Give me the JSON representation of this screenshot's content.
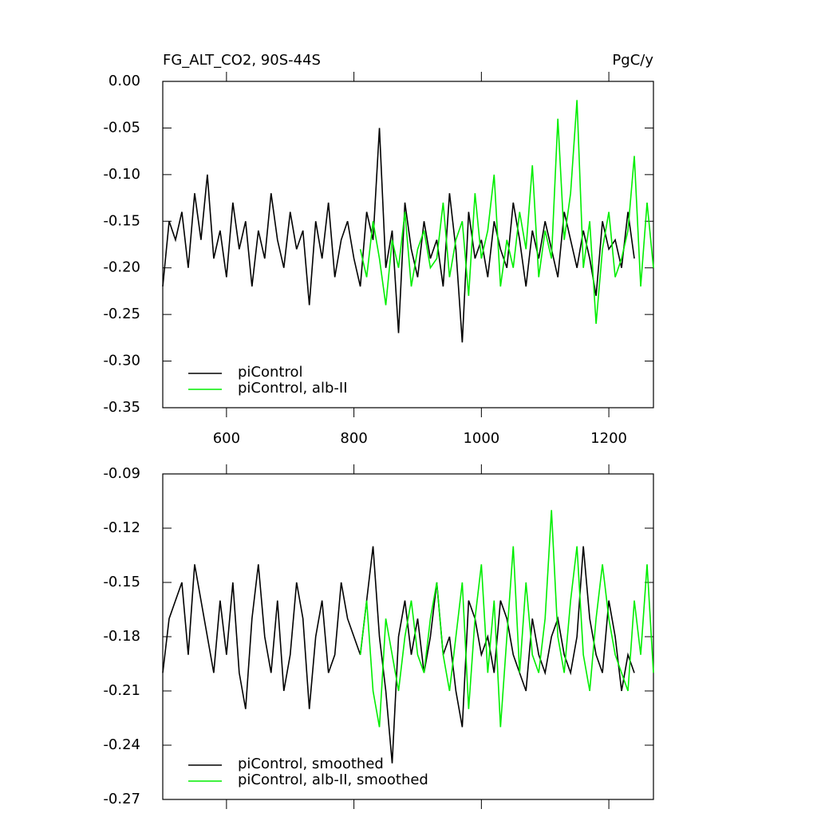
{
  "chart_data": [
    {
      "type": "line",
      "title": "FG_ALT_CO2, 90S-44S",
      "units": "PgC/y",
      "x": [
        500,
        510,
        520,
        530,
        540,
        550,
        560,
        570,
        580,
        590,
        600,
        610,
        620,
        630,
        640,
        650,
        660,
        670,
        680,
        690,
        700,
        710,
        720,
        730,
        740,
        750,
        760,
        770,
        780,
        790,
        800,
        810,
        820,
        830,
        840,
        850,
        860,
        870,
        880,
        890,
        900,
        910,
        920,
        930,
        940,
        950,
        960,
        970,
        980,
        990,
        1000,
        1010,
        1020,
        1030,
        1040,
        1050,
        1060,
        1070,
        1080,
        1090,
        1100,
        1110,
        1120,
        1130,
        1140,
        1150,
        1160,
        1170,
        1180,
        1190,
        1200,
        1210,
        1220,
        1230,
        1240,
        1250,
        1260,
        1270
      ],
      "series": [
        {
          "name": "piControl",
          "color": "#000000",
          "values": [
            -0.22,
            -0.15,
            -0.17,
            -0.14,
            -0.2,
            -0.12,
            -0.17,
            -0.1,
            -0.19,
            -0.16,
            -0.21,
            -0.13,
            -0.18,
            -0.15,
            -0.22,
            -0.16,
            -0.19,
            -0.12,
            -0.17,
            -0.2,
            -0.14,
            -0.18,
            -0.16,
            -0.24,
            -0.15,
            -0.19,
            -0.13,
            -0.21,
            -0.17,
            -0.15,
            -0.19,
            -0.22,
            -0.14,
            -0.17,
            -0.05,
            -0.2,
            -0.16,
            -0.27,
            -0.13,
            -0.18,
            -0.21,
            -0.15,
            -0.19,
            -0.17,
            -0.22,
            -0.12,
            -0.18,
            -0.28,
            -0.14,
            -0.19,
            -0.17,
            -0.21,
            -0.15,
            -0.18,
            -0.2,
            -0.13,
            -0.17,
            -0.22,
            -0.16,
            -0.19,
            -0.15,
            -0.18,
            -0.21,
            -0.14,
            -0.17,
            -0.2,
            -0.16,
            -0.19,
            -0.23,
            -0.15,
            -0.18,
            -0.17,
            -0.2,
            -0.14,
            -0.19,
            null,
            null,
            null
          ]
        },
        {
          "name": "piControl, alb-II",
          "color": "#00ee00",
          "values": [
            null,
            null,
            null,
            null,
            null,
            null,
            null,
            null,
            null,
            null,
            null,
            null,
            null,
            null,
            null,
            null,
            null,
            null,
            null,
            null,
            null,
            null,
            null,
            null,
            null,
            null,
            null,
            null,
            null,
            null,
            null,
            -0.18,
            -0.21,
            -0.15,
            -0.19,
            -0.24,
            -0.17,
            -0.2,
            -0.14,
            -0.22,
            -0.18,
            -0.16,
            -0.2,
            -0.19,
            -0.13,
            -0.21,
            -0.17,
            -0.15,
            -0.23,
            -0.12,
            -0.19,
            -0.16,
            -0.1,
            -0.22,
            -0.17,
            -0.2,
            -0.14,
            -0.18,
            -0.09,
            -0.21,
            -0.16,
            -0.19,
            -0.04,
            -0.17,
            -0.12,
            -0.02,
            -0.2,
            -0.15,
            -0.26,
            -0.18,
            -0.14,
            -0.21,
            -0.19,
            -0.16,
            -0.08,
            -0.22,
            -0.13,
            -0.2
          ]
        }
      ],
      "xlim": [
        500,
        1270
      ],
      "xticks": [
        600,
        800,
        1000,
        1200
      ],
      "ylim": [
        -0.35,
        0
      ],
      "yticks": [
        {
          "value": -0.35,
          "label": "-0.35"
        },
        {
          "value": -0.3,
          "label": "-0.30"
        },
        {
          "value": -0.25,
          "label": "-0.25"
        },
        {
          "value": -0.2,
          "label": "-0.20"
        },
        {
          "value": -0.15,
          "label": "-0.15"
        },
        {
          "value": -0.1,
          "label": "-0.10"
        },
        {
          "value": -0.05,
          "label": "-0.05"
        },
        {
          "value": 0,
          "label": "0.00"
        }
      ],
      "legend": "lower left"
    },
    {
      "type": "line",
      "x": [
        500,
        510,
        520,
        530,
        540,
        550,
        560,
        570,
        580,
        590,
        600,
        610,
        620,
        630,
        640,
        650,
        660,
        670,
        680,
        690,
        700,
        710,
        720,
        730,
        740,
        750,
        760,
        770,
        780,
        790,
        800,
        810,
        820,
        830,
        840,
        850,
        860,
        870,
        880,
        890,
        900,
        910,
        920,
        930,
        940,
        950,
        960,
        970,
        980,
        990,
        1000,
        1010,
        1020,
        1030,
        1040,
        1050,
        1060,
        1070,
        1080,
        1090,
        1100,
        1110,
        1120,
        1130,
        1140,
        1150,
        1160,
        1170,
        1180,
        1190,
        1200,
        1210,
        1220,
        1230,
        1240,
        1250,
        1260,
        1270
      ],
      "series": [
        {
          "name": "piControl, smoothed",
          "color": "#000000",
          "values": [
            -0.2,
            -0.17,
            -0.16,
            -0.15,
            -0.19,
            -0.14,
            -0.16,
            -0.18,
            -0.2,
            -0.16,
            -0.19,
            -0.15,
            -0.2,
            -0.22,
            -0.17,
            -0.14,
            -0.18,
            -0.2,
            -0.16,
            -0.21,
            -0.19,
            -0.15,
            -0.17,
            -0.22,
            -0.18,
            -0.16,
            -0.2,
            -0.19,
            -0.15,
            -0.17,
            -0.18,
            -0.19,
            -0.16,
            -0.13,
            -0.18,
            -0.21,
            -0.25,
            -0.18,
            -0.16,
            -0.19,
            -0.17,
            -0.2,
            -0.18,
            -0.15,
            -0.19,
            -0.18,
            -0.21,
            -0.23,
            -0.16,
            -0.17,
            -0.19,
            -0.18,
            -0.2,
            -0.16,
            -0.17,
            -0.19,
            -0.2,
            -0.21,
            -0.17,
            -0.19,
            -0.2,
            -0.18,
            -0.17,
            -0.19,
            -0.2,
            -0.18,
            -0.13,
            -0.17,
            -0.19,
            -0.2,
            -0.16,
            -0.18,
            -0.21,
            -0.19,
            -0.2,
            null,
            null,
            null
          ]
        },
        {
          "name": "piControl, alb-II, smoothed",
          "color": "#00ee00",
          "values": [
            null,
            null,
            null,
            null,
            null,
            null,
            null,
            null,
            null,
            null,
            null,
            null,
            null,
            null,
            null,
            null,
            null,
            null,
            null,
            null,
            null,
            null,
            null,
            null,
            null,
            null,
            null,
            null,
            null,
            null,
            null,
            -0.19,
            -0.16,
            -0.21,
            -0.23,
            -0.17,
            -0.19,
            -0.21,
            -0.18,
            -0.16,
            -0.19,
            -0.2,
            -0.17,
            -0.15,
            -0.19,
            -0.21,
            -0.18,
            -0.15,
            -0.22,
            -0.17,
            -0.14,
            -0.2,
            -0.16,
            -0.23,
            -0.18,
            -0.13,
            -0.2,
            -0.15,
            -0.19,
            -0.2,
            -0.17,
            -0.11,
            -0.18,
            -0.2,
            -0.16,
            -0.13,
            -0.19,
            -0.21,
            -0.17,
            -0.14,
            -0.17,
            -0.19,
            -0.2,
            -0.21,
            -0.16,
            -0.19,
            -0.14,
            -0.2
          ]
        }
      ],
      "xlim": [
        500,
        1270
      ],
      "xticks": [
        600,
        800,
        1000,
        1200
      ],
      "ylim": [
        -0.27,
        -0.09
      ],
      "yticks": [
        -0.27,
        -0.24,
        -0.21,
        -0.18,
        -0.15,
        -0.12,
        -0.09
      ],
      "legend": "lower left"
    }
  ]
}
